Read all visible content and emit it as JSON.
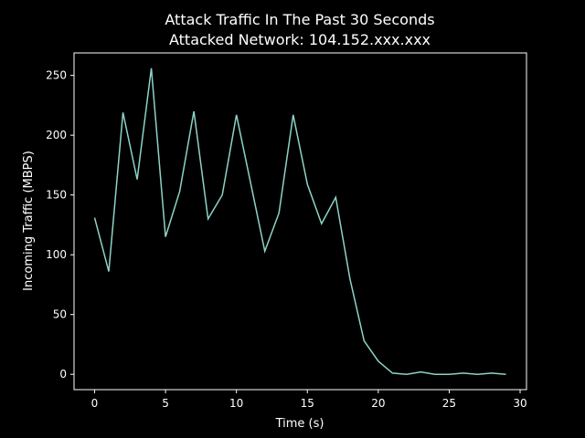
{
  "chart_data": {
    "type": "line",
    "title": "Attack Traffic In The Past 30 Seconds",
    "subtitle": "Attacked Network: 104.152.xxx.xxx",
    "x_label": "Time (s)",
    "y_label": "Incoming Traffic (MBPS)",
    "x": [
      0,
      1,
      2,
      3,
      4,
      5,
      6,
      7,
      8,
      9,
      10,
      11,
      12,
      13,
      14,
      15,
      16,
      17,
      18,
      19,
      20,
      21,
      22,
      23,
      24,
      25,
      26,
      27,
      28,
      29
    ],
    "series": [
      {
        "color": "#8dd3c7",
        "values": [
          131,
          86,
          219,
          163,
          256,
          115,
          153,
          220,
          130,
          150,
          217,
          160,
          103,
          135,
          217,
          159,
          126,
          148,
          80,
          28,
          11,
          1,
          0,
          2,
          0,
          0,
          1,
          0,
          1,
          0
        ]
      }
    ],
    "xlim": [
      -1.45,
      30.45
    ],
    "xticks": [
      0,
      5,
      10,
      15,
      20,
      25,
      30
    ],
    "ylim": [
      -12.8,
      268.8
    ],
    "yticks": [
      0,
      50,
      100,
      150,
      200,
      250
    ]
  }
}
